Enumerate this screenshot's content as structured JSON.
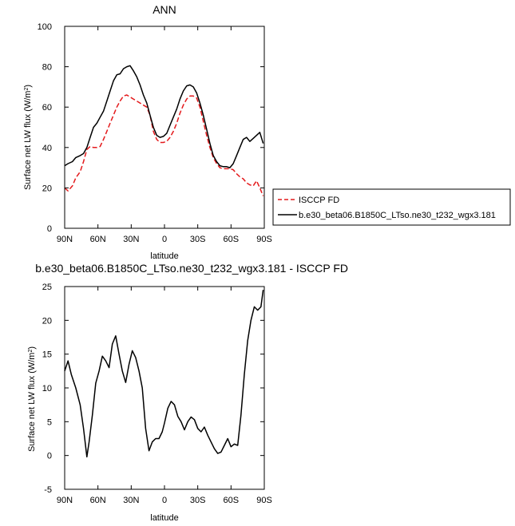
{
  "chart_data": [
    {
      "type": "line",
      "title": "ANN",
      "xlabel": "latitude",
      "ylabel": "Surface net LW flux (W/m",
      "ylabel_sup": "2",
      "ylabel_end": ")",
      "xlim": [
        90,
        -90
      ],
      "ylim": [
        0,
        100
      ],
      "x_ticks": [
        90,
        60,
        30,
        0,
        -30,
        -60,
        -90
      ],
      "x_tick_labels": [
        "90N",
        "60N",
        "30N",
        "0",
        "30S",
        "60S",
        "90S"
      ],
      "y_ticks": [
        0,
        20,
        40,
        60,
        80,
        100
      ],
      "y_tick_labels": [
        "0",
        "20",
        "40",
        "60",
        "80",
        "100"
      ],
      "legend_position": "right",
      "series": [
        {
          "name": "ISCCP FD",
          "color": "#e41a1c",
          "dash": "dashed",
          "x": [
            90,
            87,
            83,
            80,
            76,
            73,
            70,
            67,
            64,
            61,
            58,
            55,
            52,
            49,
            46,
            43,
            40,
            37,
            34,
            31,
            28,
            25,
            22,
            19,
            16,
            13,
            10,
            7,
            4,
            1,
            -2,
            -5,
            -8,
            -11,
            -14,
            -17,
            -20,
            -23,
            -26,
            -29,
            -32,
            -35,
            -38,
            -41,
            -44,
            -47,
            -50,
            -53,
            -56,
            -59,
            -62,
            -65,
            -68,
            -71,
            -74,
            -77,
            -80,
            -83,
            -86,
            -89
          ],
          "y": [
            20,
            18.5,
            21,
            25,
            28,
            33,
            39,
            40.5,
            40,
            40,
            40.5,
            44,
            48,
            52,
            56,
            60,
            63,
            65.5,
            66,
            65,
            64,
            63,
            62,
            61,
            60,
            56,
            48,
            44,
            42.5,
            42.5,
            43,
            45,
            48,
            52,
            57,
            61,
            64,
            65.5,
            65.5,
            64.5,
            60,
            53,
            46,
            40,
            35,
            32,
            30,
            29.5,
            29.5,
            29.5,
            29,
            27,
            25.5,
            24.5,
            22.5,
            21.5,
            21,
            23.5,
            20,
            16
          ]
        },
        {
          "name": "b.e30_beta06.B1850C_LTso.ne30_t232_wgx3.181",
          "color": "#000000",
          "dash": "solid",
          "x": [
            90,
            87,
            83,
            80,
            76,
            73,
            70,
            67,
            64,
            61,
            58,
            55,
            52,
            49,
            46,
            43,
            40,
            37,
            34,
            31,
            28,
            25,
            22,
            19,
            16,
            13,
            10,
            7,
            4,
            1,
            -2,
            -5,
            -8,
            -11,
            -14,
            -17,
            -20,
            -23,
            -26,
            -29,
            -32,
            -35,
            -38,
            -41,
            -44,
            -47,
            -50,
            -53,
            -56,
            -59,
            -62,
            -65,
            -68,
            -71,
            -74,
            -77,
            -80,
            -83,
            -86,
            -89
          ],
          "y": [
            31,
            32,
            33,
            35,
            36,
            37,
            40,
            45,
            50,
            52,
            55,
            58,
            63,
            68,
            73,
            76,
            76.5,
            79,
            80,
            80.5,
            78,
            75,
            71,
            66,
            62,
            56,
            50,
            46,
            45,
            45.5,
            47,
            51,
            55,
            59,
            64,
            68,
            70.5,
            71,
            70,
            67,
            62,
            56,
            49,
            42,
            36,
            33,
            31,
            30.5,
            30.5,
            30,
            32,
            36,
            40,
            44,
            45,
            43,
            44.5,
            46,
            47.5,
            42
          ]
        }
      ]
    },
    {
      "type": "line",
      "title": "b.e30_beta06.B1850C_LTso.ne30_t232_wgx3.181 - ISCCP FD",
      "xlabel": "latitude",
      "ylabel": "Surface net LW flux (W/m",
      "ylabel_sup": "2",
      "ylabel_end": ")",
      "xlim": [
        90,
        -90
      ],
      "ylim": [
        -5,
        25
      ],
      "x_ticks": [
        90,
        60,
        30,
        0,
        -30,
        -60,
        -90
      ],
      "x_tick_labels": [
        "90N",
        "60N",
        "30N",
        "0",
        "30S",
        "60S",
        "90S"
      ],
      "y_ticks": [
        -5,
        0,
        5,
        10,
        15,
        20,
        25
      ],
      "y_tick_labels": [
        "-5",
        "0",
        "5",
        "10",
        "15",
        "20",
        "25"
      ],
      "series": [
        {
          "color": "#000000",
          "dash": "solid",
          "x": [
            90,
            87,
            84,
            80,
            76,
            73,
            70,
            68,
            65,
            62,
            59,
            56,
            53,
            50,
            47,
            44,
            41,
            38,
            35,
            32,
            29,
            26,
            23,
            20,
            17,
            14,
            11,
            8,
            5,
            2,
            0,
            -3,
            -6,
            -9,
            -12,
            -15,
            -18,
            -21,
            -24,
            -27,
            -30,
            -33,
            -36,
            -39,
            -42,
            -45,
            -48,
            -51,
            -54,
            -57,
            -60,
            -63,
            -66,
            -69,
            -72,
            -75,
            -78,
            -81,
            -84,
            -87,
            -89
          ],
          "y": [
            12.5,
            14,
            12,
            10,
            7.5,
            4,
            -0.2,
            2,
            6,
            10.7,
            12.5,
            14.7,
            14,
            13,
            16.5,
            17.7,
            15,
            12.5,
            10.8,
            13.5,
            15.5,
            14.5,
            12.5,
            10,
            4,
            0.7,
            2,
            2.5,
            2.5,
            3.5,
            4.8,
            7,
            8,
            7.5,
            5.8,
            5,
            3.8,
            5,
            5.7,
            5.3,
            4,
            3.5,
            4.2,
            3,
            2,
            1,
            0.3,
            0.5,
            1.5,
            2.5,
            1.3,
            1.7,
            1.5,
            6,
            12,
            17,
            20,
            22,
            21.5,
            22,
            24.5
          ]
        }
      ]
    }
  ]
}
